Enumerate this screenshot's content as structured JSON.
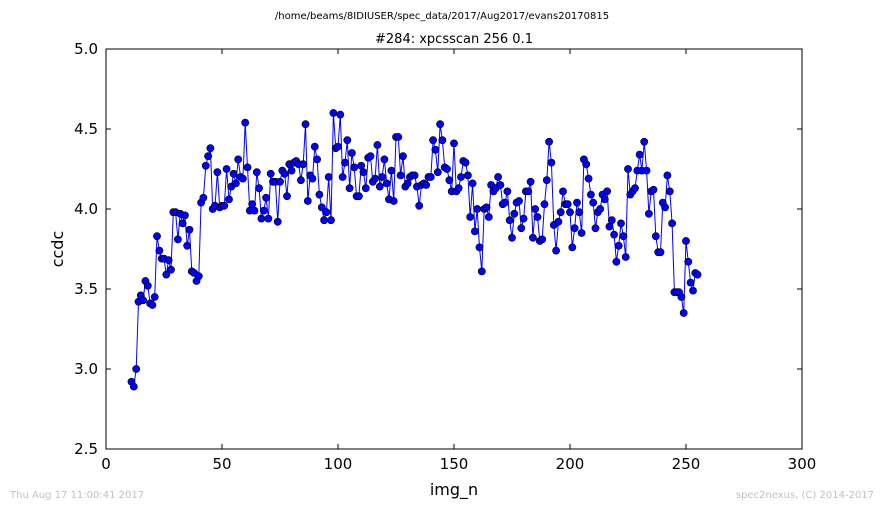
{
  "footer": {
    "timestamp": "Thu Aug 17 11:00:41 2017",
    "credit": "spec2nexus, (C) 2014-2017"
  },
  "chart_data": {
    "type": "line",
    "suptitle": "/home/beams/8IDIUSER/spec_data/2017/Aug2017/evans20170815",
    "title": "#284: xpcsscan 256 0.1",
    "xlabel": "img_n",
    "ylabel": "ccdc",
    "xlim": [
      0,
      300
    ],
    "ylim": [
      2.5,
      5.0
    ],
    "xticks": [
      "0",
      "50",
      "100",
      "150",
      "200",
      "250",
      "300"
    ],
    "yticks": [
      "2.5",
      "3.0",
      "3.5",
      "4.0",
      "4.5",
      "5.0"
    ],
    "grid": false,
    "color": "#0000ff",
    "x_start": 11,
    "y": [
      2.92,
      2.89,
      3.0,
      3.42,
      3.46,
      3.43,
      3.55,
      3.52,
      3.41,
      3.4,
      3.45,
      3.83,
      3.74,
      3.69,
      3.69,
      3.59,
      3.68,
      3.62,
      3.98,
      3.98,
      3.81,
      3.97,
      3.91,
      3.96,
      3.77,
      3.87,
      3.61,
      3.6,
      3.55,
      3.58,
      4.04,
      4.07,
      4.27,
      4.33,
      4.38,
      4.0,
      4.02,
      4.23,
      4.01,
      4.02,
      4.02,
      4.25,
      4.06,
      4.14,
      4.22,
      4.16,
      4.31,
      4.2,
      4.19,
      4.54,
      4.26,
      3.99,
      4.03,
      3.99,
      4.23,
      4.13,
      3.94,
      3.99,
      4.07,
      3.94,
      4.22,
      4.17,
      4.17,
      3.92,
      4.17,
      4.24,
      4.22,
      4.08,
      4.28,
      4.24,
      4.29,
      4.3,
      4.28,
      4.18,
      4.28,
      4.53,
      4.05,
      4.21,
      4.19,
      4.39,
      4.31,
      4.09,
      4.01,
      3.93,
      3.98,
      4.2,
      3.93,
      4.6,
      4.38,
      4.39,
      4.59,
      4.2,
      4.29,
      4.43,
      4.13,
      4.35,
      4.26,
      4.08,
      4.08,
      4.27,
      4.23,
      4.13,
      4.32,
      4.33,
      4.17,
      4.19,
      4.4,
      4.14,
      4.2,
      4.31,
      4.16,
      4.06,
      4.24,
      4.05,
      4.45,
      4.45,
      4.21,
      4.33,
      4.14,
      4.16,
      4.2,
      4.21,
      4.21,
      4.14,
      4.02,
      4.15,
      4.16,
      4.15,
      4.2,
      4.2,
      4.43,
      4.37,
      4.23,
      4.53,
      4.43,
      4.26,
      4.25,
      4.18,
      4.11,
      4.41,
      4.11,
      4.13,
      4.2,
      4.3,
      4.29,
      4.21,
      3.95,
      4.16,
      3.86,
      4.0,
      3.76,
      3.61,
      4.0,
      4.01,
      3.95,
      4.15,
      4.11,
      4.13,
      4.2,
      4.15,
      4.03,
      4.04,
      4.11,
      3.93,
      3.82,
      3.97,
      4.04,
      4.05,
      3.88,
      3.94,
      4.11,
      4.11,
      4.17,
      3.82,
      4.0,
      3.95,
      3.8,
      3.81,
      4.03,
      4.18,
      4.42,
      4.29,
      3.9,
      3.74,
      3.92,
      3.98,
      4.11,
      4.03,
      4.03,
      3.98,
      3.76,
      3.88,
      4.04,
      3.98,
      3.85,
      4.31,
      4.28,
      4.19,
      4.09,
      4.04,
      3.88,
      3.98,
      4.0,
      4.09,
      4.06,
      4.11,
      3.89,
      3.93,
      3.84,
      3.67,
      3.77,
      3.91,
      3.83,
      3.7,
      4.25,
      4.09,
      4.11,
      4.13,
      4.24,
      4.34,
      4.24,
      4.42,
      4.24,
      3.97,
      4.11,
      4.12,
      3.83,
      3.73,
      3.73,
      4.04,
      4.01,
      4.21,
      4.11,
      3.91,
      3.48,
      3.48,
      3.48,
      3.45,
      3.35,
      3.8,
      3.67,
      3.54,
      3.49,
      3.6,
      3.59
    ]
  }
}
